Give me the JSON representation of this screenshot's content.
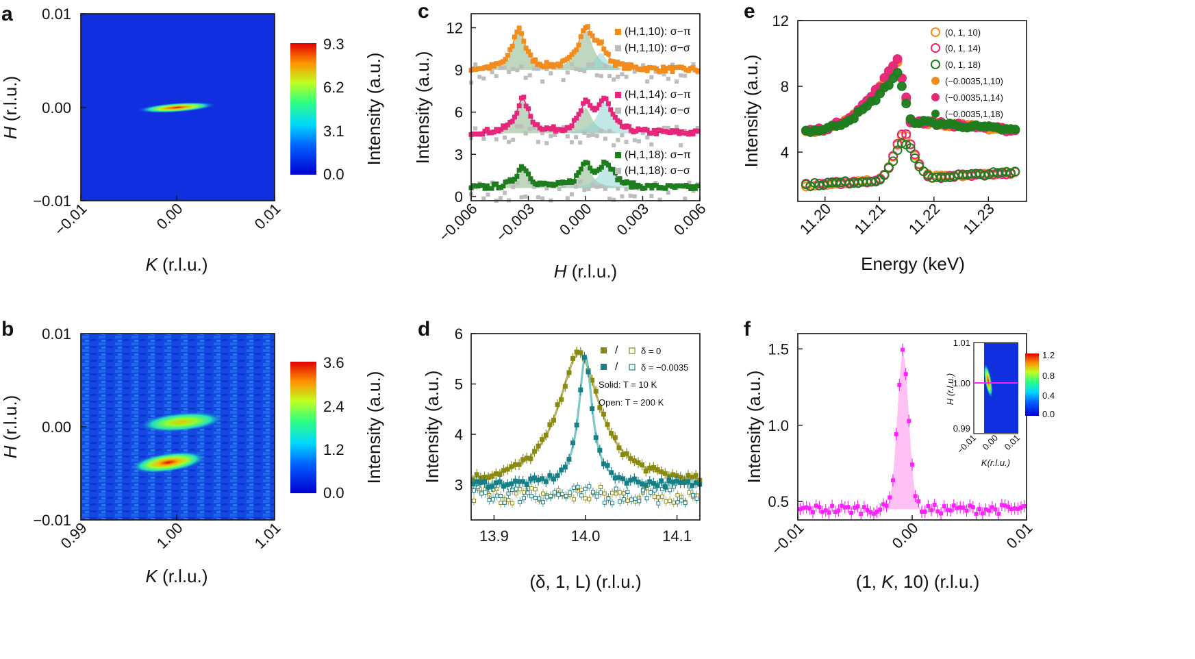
{
  "colors": {
    "orange": "#f28c1c",
    "magenta": "#e6267a",
    "green": "#1e7d1e",
    "gray": "#bdbdbd",
    "olive": "#8a8a12",
    "teal": "#177f86",
    "pink": "#ff22ff",
    "map_bg": "#1030e0"
  },
  "chart_data": [
    {
      "panel": "a",
      "type": "heatmap",
      "xlabel_italic": "K",
      "xlabel_rest": " (r.l.u.)",
      "ylabel_italic": "H",
      "ylabel_rest": " (r.l.u.)",
      "x_ticks": [
        "−0.01",
        "0.00",
        "0.01"
      ],
      "y_ticks": [
        "0.01",
        "0.00",
        "−0.01"
      ],
      "xlim": [
        -0.01,
        0.01
      ],
      "ylim": [
        -0.01,
        0.01
      ],
      "colorbar_label": "Intensity (a.u.)",
      "colorbar_ticks": [
        "9.3",
        "6.2",
        "3.1",
        "0.0"
      ],
      "colorbar_range": [
        0,
        9.3
      ],
      "peaks": [
        {
          "k": 0.0,
          "h": 0.0,
          "intensity": 9.3
        }
      ]
    },
    {
      "panel": "b",
      "type": "heatmap",
      "xlabel_italic": "K",
      "xlabel_rest": " (r.l.u.)",
      "ylabel_italic": "H",
      "ylabel_rest": " (r.l.u.)",
      "x_ticks": [
        "0.99",
        "1.00",
        "1.01"
      ],
      "y_ticks": [
        "0.01",
        "0.00",
        "−0.01"
      ],
      "xlim": [
        0.99,
        1.01
      ],
      "ylim": [
        -0.01,
        0.01
      ],
      "colorbar_label": "Intensity (a.u.)",
      "colorbar_ticks": [
        "3.6",
        "2.4",
        "1.2",
        "0.0"
      ],
      "colorbar_range": [
        0,
        3.6
      ],
      "peaks": [
        {
          "k": 1.0005,
          "h": 0.0,
          "intensity": 2.2
        },
        {
          "k": 1.0,
          "h": -0.0035,
          "intensity": 3.6
        }
      ]
    },
    {
      "panel": "c",
      "type": "line",
      "xlabel_italic": "H",
      "xlabel_rest": " (r.l.u.)",
      "ylabel": "Intensity (a.u.)",
      "xlim": [
        -0.006,
        0.006
      ],
      "ylim": [
        -0.3,
        13
      ],
      "x_ticks": [
        "−0.006",
        "−0.003",
        "0.000",
        "0.003",
        "0.006"
      ],
      "x_tick_values": [
        -0.006,
        -0.003,
        0.0,
        0.003,
        0.006
      ],
      "y_ticks": [
        "0",
        "3",
        "6",
        "9",
        "12"
      ],
      "y_tick_values": [
        0,
        3,
        6,
        9,
        12
      ],
      "series": [
        {
          "name": "(H,1,10): σ−π",
          "baseline": 9.0,
          "peaks": [
            [
              -0.0035,
              2.9,
              0.0004
            ],
            [
              0.0,
              2.9,
              0.00045
            ],
            [
              0.0008,
              1.2,
              0.0004
            ]
          ],
          "color_key": "orange"
        },
        {
          "name": "(H,1,14): σ−π",
          "baseline": 4.5,
          "peaks": [
            [
              -0.0033,
              2.4,
              0.0004
            ],
            [
              0.0,
              1.8,
              0.0004
            ],
            [
              0.001,
              2.2,
              0.00045
            ]
          ],
          "color_key": "magenta"
        },
        {
          "name": "(H,1,18): σ−π",
          "baseline": 0.6,
          "peaks": [
            [
              -0.0033,
              1.5,
              0.0004
            ],
            [
              0.0,
              1.6,
              0.0004
            ],
            [
              0.0011,
              1.7,
              0.00045
            ]
          ],
          "color_key": "green"
        }
      ],
      "sigma_sigma_labels": [
        "(H,1,10): σ−σ",
        "(H,1,14): σ−σ",
        "(H,1,18): σ−σ"
      ]
    },
    {
      "panel": "d",
      "type": "scatter",
      "xlabel": "(δ, 1, L) (r.l.u.)",
      "ylabel": "Intensity (a.u.)",
      "xlim": [
        13.875,
        14.125
      ],
      "ylim": [
        2.3,
        6.0
      ],
      "x_ticks": [
        "13.9",
        "14.0",
        "14.1"
      ],
      "x_tick_values": [
        13.9,
        14.0,
        14.1
      ],
      "y_ticks": [
        "3",
        "4",
        "5",
        "6"
      ],
      "y_tick_values": [
        3,
        4,
        5,
        6
      ],
      "series": [
        {
          "name": "δ = 0",
          "baseline": 3.0,
          "peak_x": 13.993,
          "peak_height": 2.6,
          "width": 0.028,
          "color_key": "olive"
        },
        {
          "name": "δ = −0.0035",
          "baseline": 3.0,
          "peak_x": 14.0,
          "peak_height": 2.55,
          "width": 0.009,
          "color_key": "teal"
        }
      ],
      "legend_separator": "/",
      "annotations": [
        "Solid: T = 10 K",
        "Open: T = 200 K"
      ]
    },
    {
      "panel": "e",
      "type": "scatter",
      "xlabel": "Energy (keV)",
      "ylabel": "Intensity (a.u.)",
      "xlim": [
        11.195,
        11.237
      ],
      "ylim": [
        1.0,
        12.0
      ],
      "x_ticks": [
        "11.20",
        "11.21",
        "11.22",
        "11.23"
      ],
      "x_tick_values": [
        11.2,
        11.21,
        11.22,
        11.23
      ],
      "y_ticks": [
        "4",
        "8",
        "12"
      ],
      "y_tick_values": [
        4,
        8,
        12
      ],
      "series": [
        {
          "name": "(0, 1, 10)",
          "fill": "open",
          "color_key": "orange"
        },
        {
          "name": "(0, 1, 14)",
          "fill": "open",
          "color_key": "magenta"
        },
        {
          "name": "(0, 1, 18)",
          "fill": "open",
          "color_key": "green"
        },
        {
          "name": "(−0.0035,1,10)",
          "fill": "solid",
          "color_key": "orange"
        },
        {
          "name": "(−0.0035,1,14)",
          "fill": "solid",
          "color_key": "magenta"
        },
        {
          "name": "(−0.0035,1,18)",
          "fill": "solid",
          "color_key": "green"
        }
      ]
    },
    {
      "panel": "f",
      "type": "scatter",
      "xlabel": "(1, K, 10) (r.l.u.)",
      "ylabel": "Intensity (a.u.)",
      "xlim": [
        -0.01,
        0.01
      ],
      "ylim": [
        0.38,
        1.6
      ],
      "x_ticks": [
        "−0.01",
        "0.00",
        "0.01"
      ],
      "x_tick_values": [
        -0.01,
        0.0,
        0.01
      ],
      "y_ticks": [
        "0.5",
        "1.0",
        "1.5"
      ],
      "y_tick_values": [
        0.5,
        1.0,
        1.5
      ],
      "peak": {
        "x": -0.0008,
        "baseline": 0.45,
        "height": 1.02,
        "width": 0.0005
      },
      "inset": {
        "type": "heatmap",
        "xlabel": "K(r.l.u.)",
        "ylabel": "H (r.l.u.)",
        "x_ticks": [
          "−0.01",
          "0.00",
          "0.01"
        ],
        "y_ticks": [
          "1.01",
          "1.00",
          "0.99"
        ],
        "colorbar_ticks": [
          "1.2",
          "0.8",
          "0.4",
          "0.0"
        ],
        "colorbar_range": [
          0,
          1.2
        ],
        "line_h": 1.0
      }
    }
  ]
}
